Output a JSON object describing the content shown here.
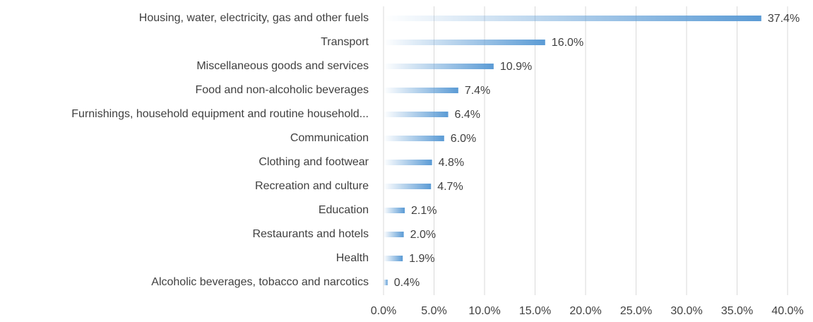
{
  "chart_data": {
    "type": "bar",
    "orientation": "horizontal",
    "categories": [
      "Housing, water, electricity, gas and other fuels",
      "Transport",
      "Miscellaneous goods and services",
      "Food and non-alcoholic beverages",
      "Furnishings, household equipment and routine household...",
      "Communication",
      "Clothing and footwear",
      "Recreation and culture",
      "Education",
      "Restaurants and hotels",
      "Health",
      "Alcoholic beverages, tobacco and narcotics"
    ],
    "values": [
      37.4,
      16.0,
      10.9,
      7.4,
      6.4,
      6.0,
      4.8,
      4.7,
      2.1,
      2.0,
      1.9,
      0.4
    ],
    "value_labels": [
      "37.4%",
      "16.0%",
      "10.9%",
      "7.4%",
      "6.4%",
      "6.0%",
      "4.8%",
      "4.7%",
      "2.1%",
      "2.0%",
      "1.9%",
      "0.4%"
    ],
    "color": "#5b9bd5",
    "gradient": true,
    "xlim": [
      0,
      40
    ],
    "xticks": [
      {
        "value": 0,
        "label": "0.0%"
      },
      {
        "value": 5,
        "label": "5.0%"
      },
      {
        "value": 10,
        "label": "10.0%"
      },
      {
        "value": 15,
        "label": "15.0%"
      },
      {
        "value": 20,
        "label": "20.0%"
      },
      {
        "value": 25,
        "label": "25.0%"
      },
      {
        "value": 30,
        "label": "30.0%"
      },
      {
        "value": 35,
        "label": "35.0%"
      },
      {
        "value": 40,
        "label": "40.0%"
      }
    ],
    "grid": true
  }
}
